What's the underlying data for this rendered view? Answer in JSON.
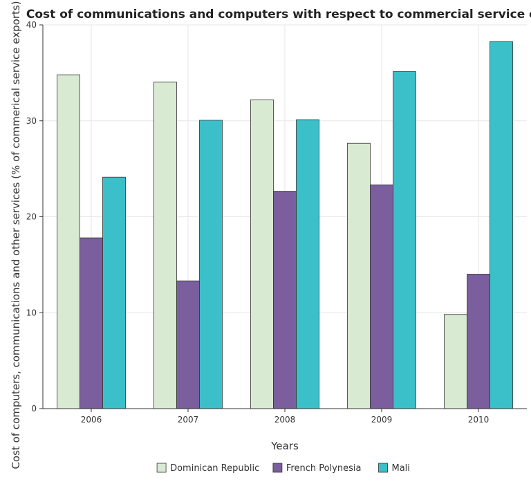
{
  "chart_data": {
    "type": "bar",
    "title": "Cost of communications and computers with respect to commercial service exports",
    "xlabel": "Years",
    "ylabel": "Cost of computers, communications and other services (% of commerical service exports)",
    "categories": [
      "2006",
      "2007",
      "2008",
      "2009",
      "2010"
    ],
    "series": [
      {
        "name": "Dominican Republic",
        "color": "#d9ead3",
        "values": [
          34.8,
          34.03,
          32.2,
          27.66,
          9.82
        ]
      },
      {
        "name": "French Polynesia",
        "color": "#7b5e9e",
        "values": [
          17.8,
          13.32,
          22.66,
          23.33,
          14.02
        ]
      },
      {
        "name": "Mali",
        "color": "#3bbfc9",
        "values": [
          24.13,
          30.06,
          30.12,
          35.13,
          38.27
        ]
      }
    ],
    "ylim": [
      0,
      40
    ],
    "yticks": [
      0,
      10,
      20,
      30,
      40
    ],
    "grid": true,
    "legend_position": "bottom-center"
  }
}
